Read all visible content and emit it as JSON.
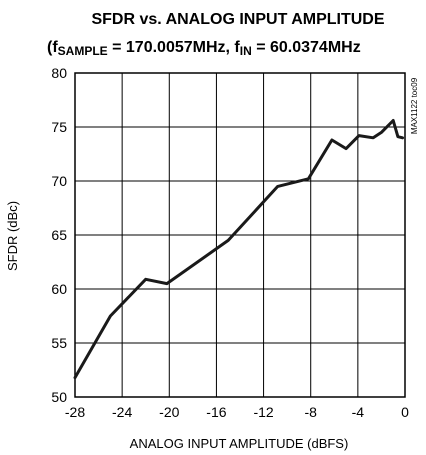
{
  "chart_data": {
    "type": "line",
    "title": "SFDR vs. ANALOG INPUT AMPLITUDE",
    "subtitle": {
      "open_paren": "(f",
      "sample_subscript": "SAMPLE",
      "sample_value": " = 170.0057MHz, f",
      "in_subscript": "IN",
      "in_value": " = 60.0374MHz"
    },
    "xlabel": "ANALOG INPUT AMPLITUDE (dBFS)",
    "ylabel": "SFDR (dBc)",
    "xlim": [
      -28,
      0
    ],
    "ylim": [
      50,
      80
    ],
    "x_ticks": [
      -28,
      -24,
      -20,
      -16,
      -12,
      -8,
      -4,
      0
    ],
    "y_ticks": [
      50,
      55,
      60,
      65,
      70,
      75,
      80
    ],
    "x_tick_labels": [
      "-28",
      "-24",
      "-20",
      "-16",
      "-12",
      "-8",
      "-4",
      "0"
    ],
    "y_tick_labels": [
      "50",
      "55",
      "60",
      "65",
      "70",
      "75",
      "80"
    ],
    "grid": true,
    "annotation": "MAX1122 toc09",
    "series": [
      {
        "x": [
          -28.0,
          -25.0,
          -22.0,
          -20.2,
          -15.0,
          -10.8,
          -8.2,
          -6.2,
          -5.0,
          -3.9,
          -2.7,
          -2.0,
          -1.0,
          -0.6,
          -0.2
        ],
        "y": [
          51.8,
          57.5,
          60.9,
          60.5,
          64.5,
          69.5,
          70.2,
          73.8,
          73.0,
          74.2,
          74.0,
          74.5,
          75.6,
          74.1,
          74.0
        ]
      }
    ],
    "colors": {
      "line": "#1a1a1a",
      "grid": "#000000",
      "background": "#ffffff"
    }
  }
}
